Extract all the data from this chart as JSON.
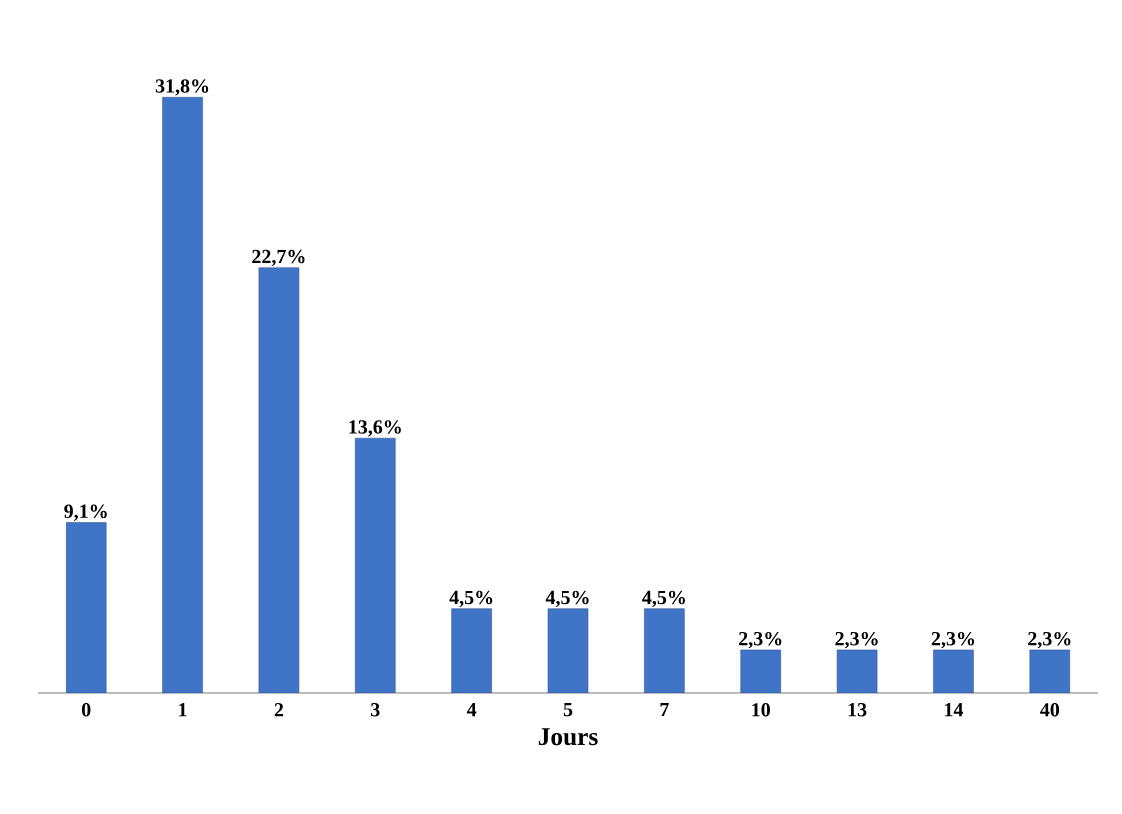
{
  "chart_data": {
    "type": "bar",
    "xlabel": "Jours",
    "categories": [
      "0",
      "1",
      "2",
      "3",
      "4",
      "5",
      "7",
      "10",
      "13",
      "14",
      "40"
    ],
    "values": [
      9.1,
      31.8,
      22.7,
      13.6,
      4.5,
      4.5,
      4.5,
      2.3,
      2.3,
      2.3,
      2.3
    ],
    "value_labels": [
      "9,1%",
      "31,8%",
      "22,7%",
      "13,6%",
      "4,5%",
      "4,5%",
      "4,5%",
      "2,3%",
      "2,3%",
      "2,3%",
      "2,3%"
    ],
    "color": "#3f74c6"
  }
}
